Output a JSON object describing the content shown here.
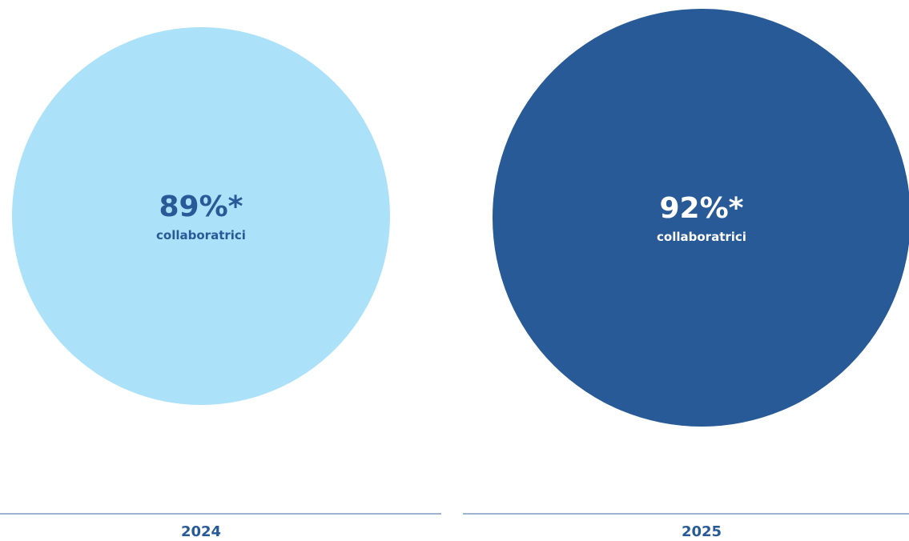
{
  "chart_data": {
    "type": "bubble",
    "categories": [
      "2024",
      "2025"
    ],
    "values": [
      89,
      92
    ],
    "labels": [
      "89%*",
      "92%*"
    ],
    "unit_label": "collaboratrici",
    "colors": {
      "fill_2024": "#abe1f9",
      "fill_2025": "#285a97",
      "text_2024": "#285a97",
      "text_2025": "#ffffff",
      "axis_line": "#7d9ac4",
      "year_text": "#285a97"
    }
  }
}
